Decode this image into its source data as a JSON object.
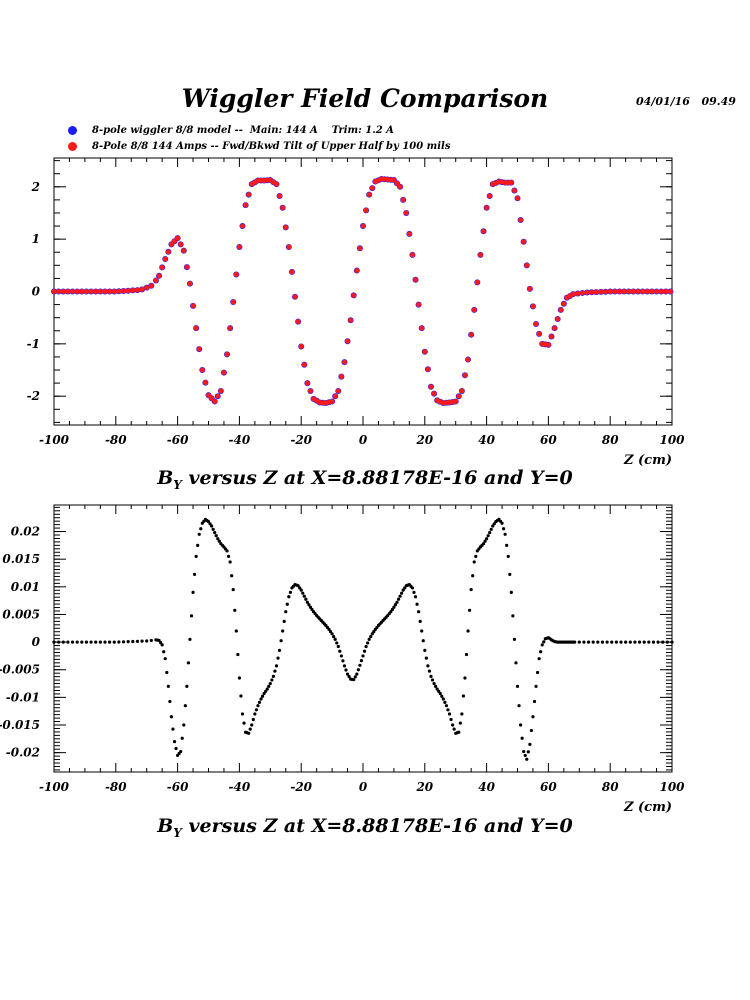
{
  "header": {
    "title": "Wiggler Field Comparison",
    "date": "04/01/16   09.49"
  },
  "legend": [
    {
      "label": "8-pole wiggler 8/8 model --  Main: 144 A    Trim: 1.2 A",
      "color": "#1a1aff"
    },
    {
      "label": "8-Pole 8/8 144 Amps -- Fwd/Bkwd Tilt of Upper Half by 100 mils",
      "color": "#ff1a1a"
    }
  ],
  "captions": [
    {
      "prefix": "B",
      "sub": "Y",
      "suffix": " versus Z at X=8.88178E-16 and Y=0"
    },
    {
      "prefix": "B",
      "sub": "Y",
      "suffix": " versus Z at X=8.88178E-16 and Y=0"
    }
  ],
  "chart_data": [
    {
      "type": "scatter",
      "xlabel": "Z (cm)",
      "xlim": [
        -100,
        100
      ],
      "ylim": [
        -2.55,
        2.55
      ],
      "xticks": [
        "-100",
        "-80",
        "-60",
        "-40",
        "-20",
        "0",
        "20",
        "40",
        "60",
        "80",
        "100"
      ],
      "yticks": [
        "-2",
        "-1",
        "0",
        "1",
        "2"
      ],
      "series": [
        {
          "name": "8-pole wiggler 8/8 model --  Main: 144 A    Trim: 1.2 A",
          "color": "#1a1aff",
          "x": [
            -100,
            -80,
            -72,
            -68,
            -66,
            -64,
            -62,
            -60,
            -58,
            -56,
            -54,
            -52,
            -50,
            -48,
            -46,
            -44,
            -42,
            -40,
            -38,
            -36,
            -34,
            -32,
            -30,
            -28,
            -26,
            -24,
            -22,
            -20,
            -18,
            -16,
            -14,
            -12,
            -10,
            -8,
            -6,
            -4,
            -2,
            0,
            2,
            4,
            6,
            8,
            10,
            12,
            14,
            16,
            18,
            20,
            22,
            24,
            26,
            28,
            30,
            32,
            34,
            36,
            38,
            40,
            42,
            44,
            46,
            48,
            50,
            52,
            54,
            56,
            58,
            60,
            62,
            64,
            66,
            68,
            72,
            80,
            100
          ],
          "y": [
            0,
            0,
            0.03,
            0.12,
            0.3,
            0.62,
            0.9,
            1.02,
            0.78,
            0.15,
            -0.7,
            -1.5,
            -1.98,
            -2.1,
            -1.9,
            -1.2,
            -0.2,
            0.85,
            1.65,
            2.05,
            2.12,
            2.12,
            2.13,
            2.05,
            1.6,
            0.85,
            -0.1,
            -1.05,
            -1.75,
            -2.05,
            -2.12,
            -2.13,
            -2.1,
            -1.9,
            -1.35,
            -0.55,
            0.4,
            1.25,
            1.85,
            2.1,
            2.15,
            2.14,
            2.13,
            2.0,
            1.5,
            0.7,
            -0.25,
            -1.15,
            -1.82,
            -2.08,
            -2.13,
            -2.12,
            -2.1,
            -1.9,
            -1.3,
            -0.35,
            0.7,
            1.6,
            2.05,
            2.1,
            2.08,
            2.08,
            1.78,
            0.95,
            0.05,
            -0.62,
            -1.0,
            -1.02,
            -0.7,
            -0.35,
            -0.12,
            -0.05,
            -0.02,
            0,
            0
          ]
        },
        {
          "name": "8-Pole 8/8 144 Amps -- Fwd/Bkwd Tilt of Upper Half by 100 mils",
          "color": "#ff1a1a",
          "x": [
            -100,
            -80,
            -72,
            -68,
            -66,
            -64,
            -62,
            -60,
            -58,
            -56,
            -54,
            -52,
            -50,
            -48,
            -46,
            -44,
            -42,
            -40,
            -38,
            -36,
            -34,
            -32,
            -30,
            -28,
            -26,
            -24,
            -22,
            -20,
            -18,
            -16,
            -14,
            -12,
            -10,
            -8,
            -6,
            -4,
            -2,
            0,
            2,
            4,
            6,
            8,
            10,
            12,
            14,
            16,
            18,
            20,
            22,
            24,
            26,
            28,
            30,
            32,
            34,
            36,
            38,
            40,
            42,
            44,
            46,
            48,
            50,
            52,
            54,
            56,
            58,
            60,
            62,
            64,
            66,
            68,
            72,
            80,
            100
          ],
          "y": [
            0,
            0,
            0.03,
            0.12,
            0.3,
            0.62,
            0.9,
            1.02,
            0.78,
            0.15,
            -0.7,
            -1.5,
            -1.98,
            -2.1,
            -1.9,
            -1.2,
            -0.2,
            0.85,
            1.65,
            2.05,
            2.12,
            2.12,
            2.13,
            2.05,
            1.6,
            0.85,
            -0.1,
            -1.05,
            -1.75,
            -2.05,
            -2.12,
            -2.13,
            -2.1,
            -1.9,
            -1.35,
            -0.55,
            0.4,
            1.25,
            1.85,
            2.1,
            2.15,
            2.14,
            2.13,
            2.0,
            1.5,
            0.7,
            -0.25,
            -1.15,
            -1.82,
            -2.08,
            -2.13,
            -2.12,
            -2.1,
            -1.9,
            -1.3,
            -0.35,
            0.7,
            1.6,
            2.05,
            2.1,
            2.08,
            2.08,
            1.78,
            0.95,
            0.05,
            -0.62,
            -1.0,
            -1.02,
            -0.7,
            -0.35,
            -0.12,
            -0.05,
            -0.02,
            0,
            0
          ]
        }
      ]
    },
    {
      "type": "scatter",
      "xlabel": "Z (cm)",
      "xlim": [
        -100,
        100
      ],
      "ylim": [
        -0.0235,
        0.0248
      ],
      "xticks": [
        "-100",
        "-80",
        "-60",
        "-40",
        "-20",
        "0",
        "20",
        "40",
        "60",
        "80",
        "100"
      ],
      "yticks": [
        "-0.02",
        "-0.015",
        "-0.01",
        "-0.005",
        "0",
        "0.005",
        "0.01",
        "0.015",
        "0.02"
      ],
      "series": [
        {
          "color": "#000000",
          "x": [
            -100,
            -80,
            -70,
            -67,
            -66,
            -65,
            -64,
            -63,
            -62,
            -61,
            -60,
            -59,
            -58,
            -57,
            -56,
            -55,
            -54,
            -53,
            -52,
            -51,
            -50,
            -49,
            -48,
            -47,
            -46,
            -45,
            -44,
            -43,
            -42,
            -41,
            -40,
            -39,
            -38,
            -37,
            -36,
            -35,
            -34,
            -33,
            -32,
            -31,
            -30,
            -29,
            -28,
            -27,
            -26,
            -25,
            -24,
            -23,
            -22,
            -21,
            -20,
            -19,
            -18,
            -17,
            -16,
            -15,
            -14,
            -13,
            -12,
            -11,
            -10,
            -9,
            -8,
            -7,
            -6,
            -5,
            -4,
            -3,
            -2,
            -1,
            0,
            1,
            2,
            3,
            4,
            5,
            6,
            7,
            8,
            9,
            10,
            11,
            12,
            13,
            14,
            15,
            16,
            17,
            18,
            19,
            20,
            21,
            22,
            23,
            24,
            25,
            26,
            27,
            28,
            29,
            30,
            31,
            32,
            33,
            34,
            35,
            36,
            37,
            38,
            39,
            40,
            41,
            42,
            43,
            44,
            45,
            46,
            47,
            48,
            49,
            50,
            51,
            52,
            53,
            54,
            55,
            56,
            57,
            58,
            59,
            60,
            61,
            62,
            63,
            64,
            65,
            66,
            67,
            70,
            80,
            100
          ],
          "y": [
            0,
            0,
            0.0002,
            0.0004,
            0.0003,
            -0.0005,
            -0.003,
            -0.008,
            -0.0135,
            -0.018,
            -0.0205,
            -0.0198,
            -0.015,
            -0.008,
            0.0005,
            0.009,
            0.0155,
            0.0195,
            0.0215,
            0.0222,
            0.0218,
            0.021,
            0.0198,
            0.0187,
            0.0178,
            0.0172,
            0.0165,
            0.0145,
            0.0095,
            0.002,
            -0.0065,
            -0.013,
            -0.0163,
            -0.0165,
            -0.015,
            -0.013,
            -0.0115,
            -0.0103,
            -0.0093,
            -0.0085,
            -0.0075,
            -0.0062,
            -0.0043,
            -0.0015,
            0.002,
            0.0055,
            0.0082,
            0.0098,
            0.0104,
            0.0102,
            0.0094,
            0.0083,
            0.0072,
            0.0063,
            0.0055,
            0.0048,
            0.0042,
            0.0036,
            0.003,
            0.0023,
            0.0015,
            0.0005,
            -0.0008,
            -0.0025,
            -0.0043,
            -0.0058,
            -0.0067,
            -0.0068,
            -0.0058,
            -0.0042,
            -0.0025,
            -0.0008,
            0.0005,
            0.0015,
            0.0023,
            0.003,
            0.0036,
            0.0042,
            0.0048,
            0.0055,
            0.0063,
            0.0072,
            0.0083,
            0.0094,
            0.0102,
            0.0104,
            0.0098,
            0.0082,
            0.0055,
            0.002,
            -0.0015,
            -0.0043,
            -0.0062,
            -0.0075,
            -0.0085,
            -0.0093,
            -0.0103,
            -0.0115,
            -0.013,
            -0.015,
            -0.0165,
            -0.0163,
            -0.013,
            -0.0065,
            0.002,
            0.0095,
            0.0145,
            0.0165,
            0.0172,
            0.0178,
            0.0187,
            0.0198,
            0.021,
            0.0218,
            0.0222,
            0.0215,
            0.0195,
            0.0155,
            0.009,
            0.0005,
            -0.008,
            -0.015,
            -0.0198,
            -0.0212,
            -0.0185,
            -0.0135,
            -0.008,
            -0.003,
            -0.0005,
            0.0006,
            0.0008,
            0.0004,
            0.0001,
            0,
            0,
            0,
            0,
            0,
            0,
            0,
            0
          ]
        }
      ]
    }
  ]
}
